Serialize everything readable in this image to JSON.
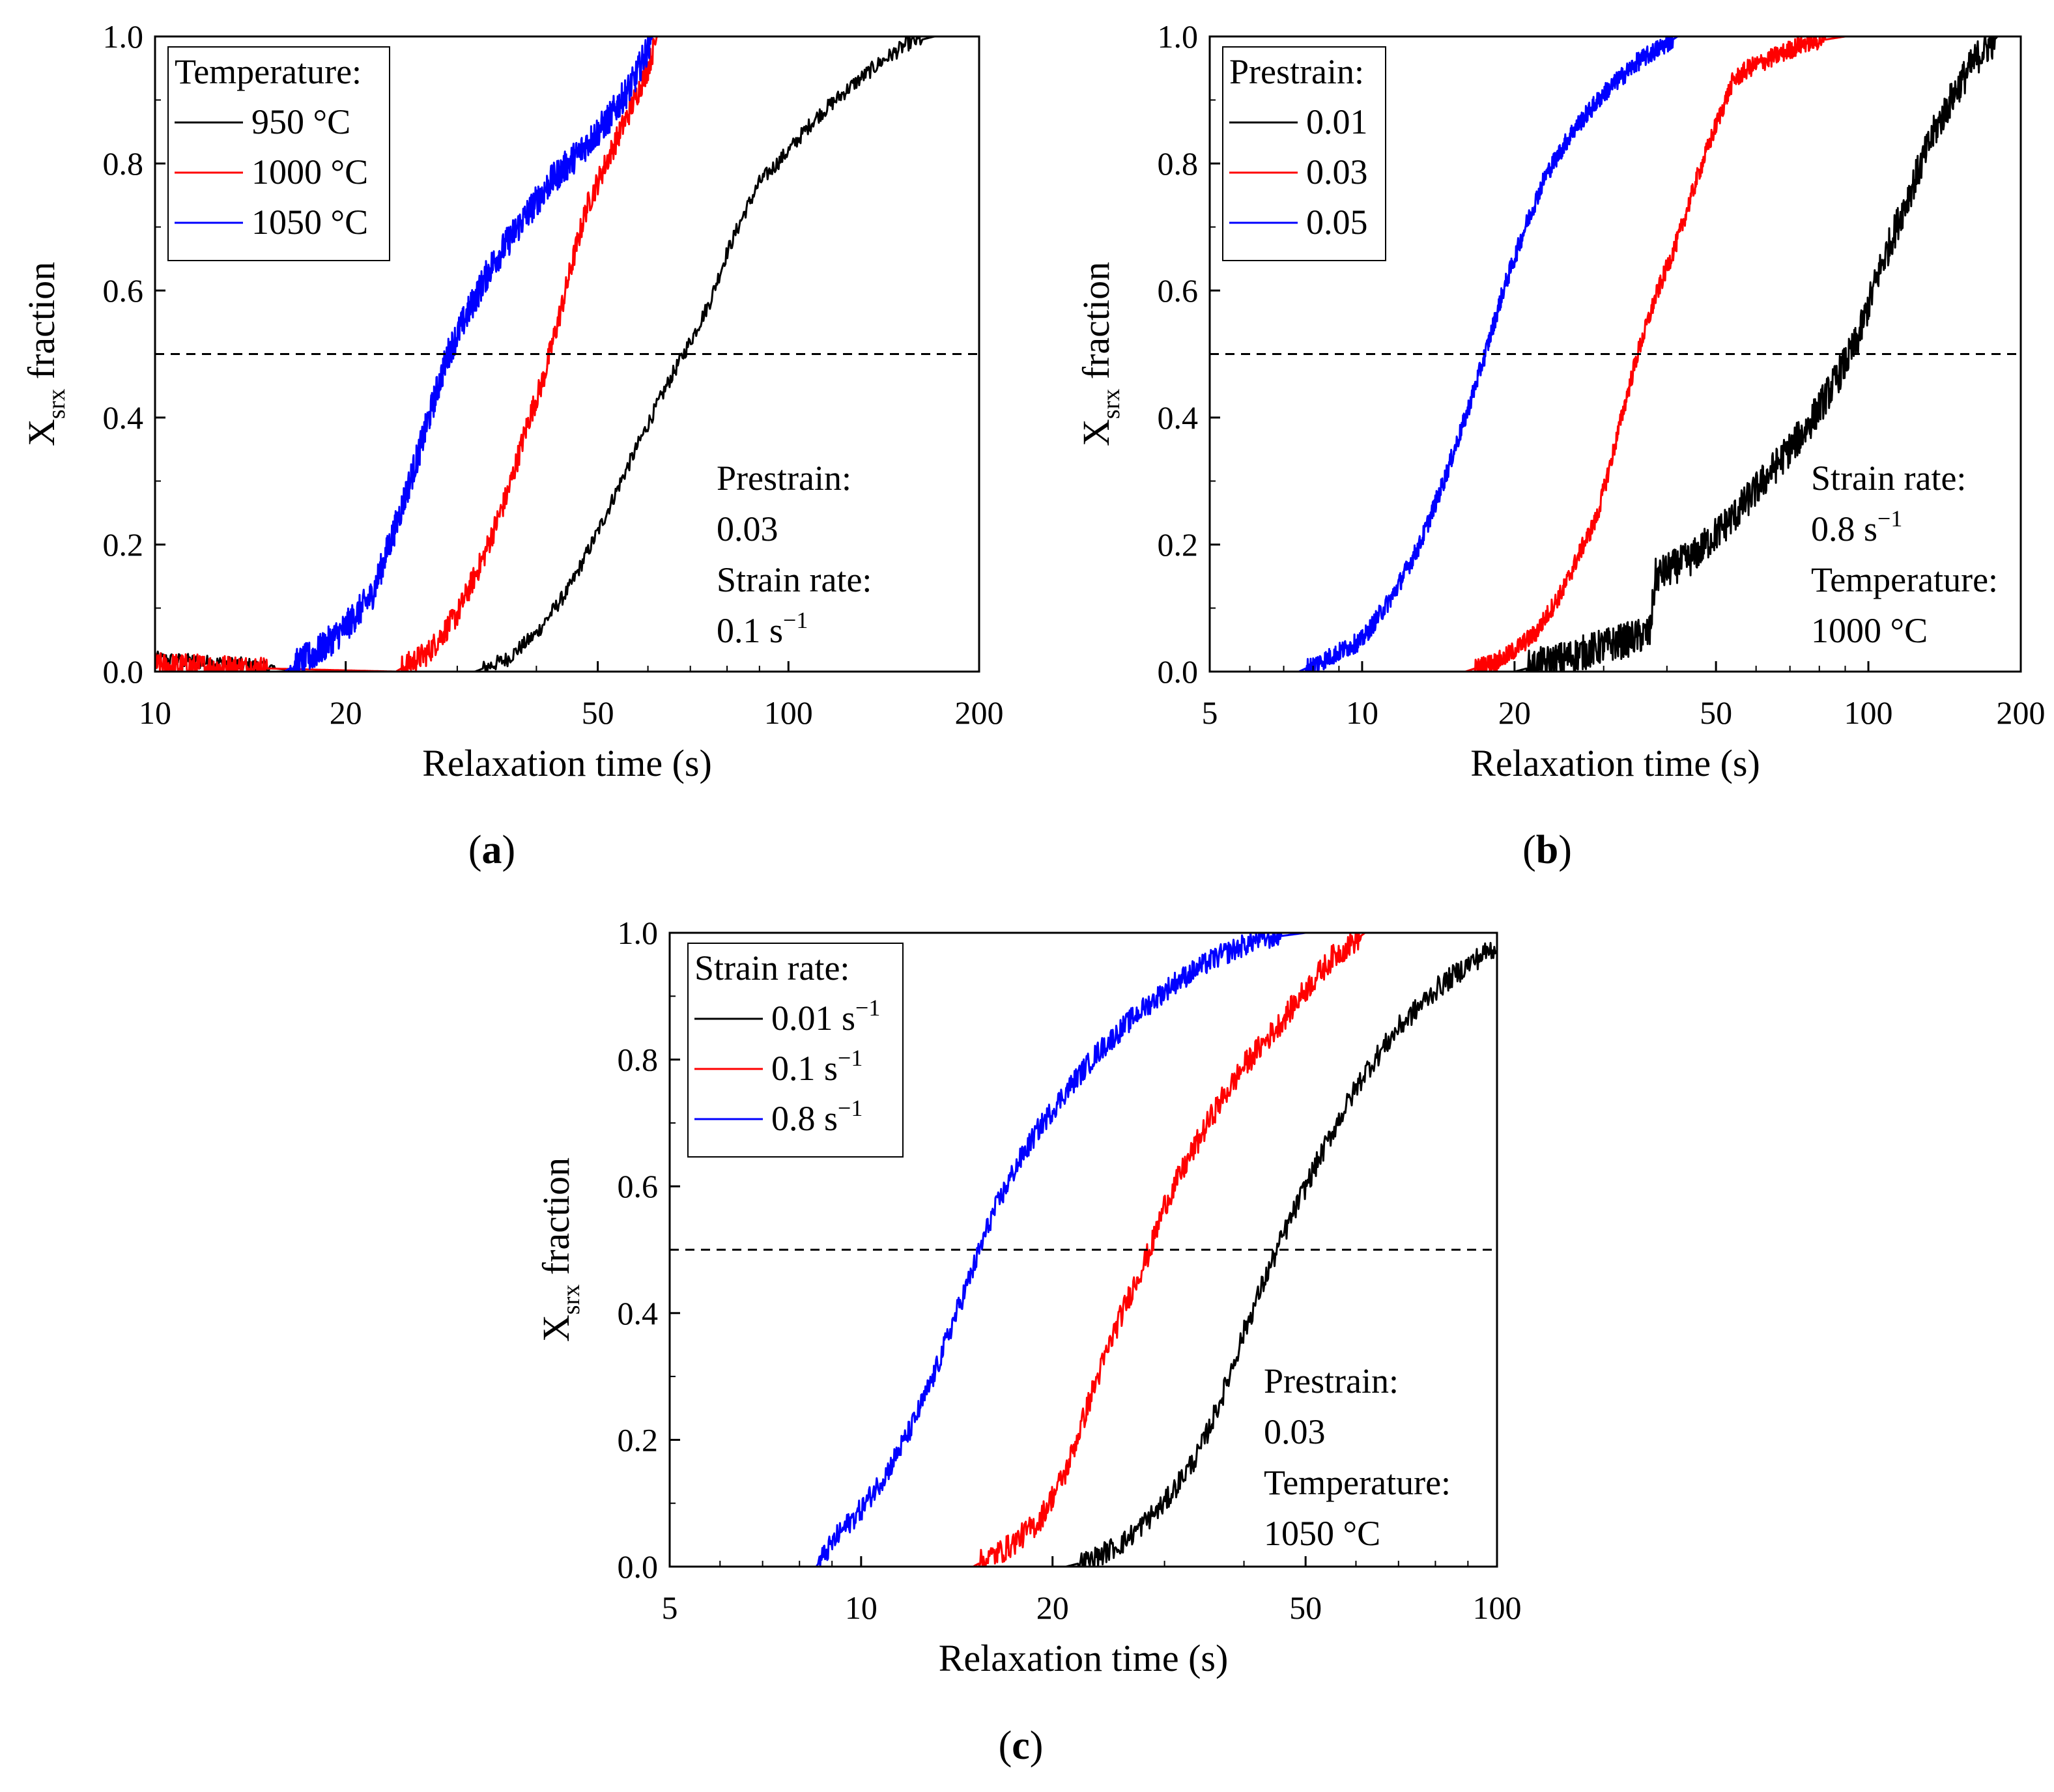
{
  "chart_data": [
    {
      "id": "a",
      "type": "line",
      "panel_label": "a",
      "xlabel": "Relaxation time (s)",
      "ylabel_main": "X",
      "ylabel_sub": "srx",
      "ylabel_rest": " fraction",
      "xscale": "log",
      "xlim": [
        10,
        200
      ],
      "ylim": [
        0.0,
        1.0
      ],
      "xticks": [
        10,
        20,
        50,
        100,
        200
      ],
      "xtick_labels": [
        "10",
        "20",
        "50",
        "100",
        "200"
      ],
      "yticks": [
        0.0,
        0.2,
        0.4,
        0.6,
        0.8,
        1.0
      ],
      "ytick_labels": [
        "0.0",
        "0.2",
        "0.4",
        "0.6",
        "0.8",
        "1.0"
      ],
      "reference_line": {
        "y": 0.5,
        "style": "dashed"
      },
      "legend": {
        "title": "Temperature:",
        "position": "top-left",
        "entries": [
          {
            "label": "950 °C",
            "color": "#000000"
          },
          {
            "label": "1000 °C",
            "color": "#ff0000"
          },
          {
            "label": "1050 °C",
            "color": "#0000ff"
          }
        ]
      },
      "annotation": {
        "lines": [
          {
            "text": "Prestrain:"
          },
          {
            "text": "0.03"
          },
          {
            "text": "Strain rate:"
          },
          {
            "text": "0.1 s",
            "sup": "−1"
          }
        ]
      },
      "series": [
        {
          "name": "950 °C",
          "color": "#000000",
          "noise": 0.012,
          "x_end": 200,
          "points": [
            [
              10,
              0.02
            ],
            [
              14,
              0.01
            ],
            [
              17,
              0.0
            ],
            [
              32,
              0.0
            ],
            [
              36,
              0.02
            ],
            [
              40,
              0.06
            ],
            [
              45,
              0.13
            ],
            [
              50,
              0.22
            ],
            [
              55,
              0.31
            ],
            [
              60,
              0.39
            ],
            [
              65,
              0.46
            ],
            [
              70,
              0.52
            ],
            [
              75,
              0.58
            ],
            [
              80,
              0.66
            ],
            [
              85,
              0.72
            ],
            [
              90,
              0.77
            ],
            [
              100,
              0.82
            ],
            [
              110,
              0.87
            ],
            [
              125,
              0.92
            ],
            [
              140,
              0.96
            ],
            [
              155,
              0.99
            ],
            [
              170,
              1.0
            ],
            [
              200,
              1.0
            ]
          ]
        },
        {
          "name": "1000 °C",
          "color": "#ff0000",
          "noise": 0.02,
          "x_end": 62,
          "points": [
            [
              10,
              0.01
            ],
            [
              15,
              0.005
            ],
            [
              24,
              0.0
            ],
            [
              27,
              0.03
            ],
            [
              30,
              0.09
            ],
            [
              33,
              0.18
            ],
            [
              36,
              0.28
            ],
            [
              39,
              0.4
            ],
            [
              41,
              0.46
            ],
            [
              42,
              0.5
            ],
            [
              44,
              0.58
            ],
            [
              46,
              0.66
            ],
            [
              48,
              0.73
            ],
            [
              52,
              0.81
            ],
            [
              56,
              0.88
            ],
            [
              60,
              0.95
            ],
            [
              62,
              1.0
            ]
          ]
        },
        {
          "name": "1050 °C",
          "color": "#0000ff",
          "noise": 0.025,
          "x_end": 61,
          "points": [
            [
              16,
              0.0
            ],
            [
              18,
              0.03
            ],
            [
              20,
              0.07
            ],
            [
              22,
              0.12
            ],
            [
              24,
              0.23
            ],
            [
              26,
              0.34
            ],
            [
              28,
              0.45
            ],
            [
              29,
              0.5
            ],
            [
              31,
              0.56
            ],
            [
              34,
              0.64
            ],
            [
              38,
              0.71
            ],
            [
              42,
              0.77
            ],
            [
              47,
              0.82
            ],
            [
              52,
              0.87
            ],
            [
              57,
              0.93
            ],
            [
              61,
              1.0
            ]
          ]
        }
      ]
    },
    {
      "id": "b",
      "type": "line",
      "panel_label": "b",
      "xlabel": "Relaxation time (s)",
      "ylabel_main": "X",
      "ylabel_sub": "srx",
      "ylabel_rest": " fraction",
      "xscale": "log",
      "xlim": [
        5,
        200
      ],
      "ylim": [
        0.0,
        1.0
      ],
      "xticks": [
        5,
        10,
        20,
        50,
        100,
        200
      ],
      "xtick_labels": [
        "5",
        "10",
        "20",
        "50",
        "100",
        "200"
      ],
      "yticks": [
        0.0,
        0.2,
        0.4,
        0.6,
        0.8,
        1.0
      ],
      "ytick_labels": [
        "0.0",
        "0.2",
        "0.4",
        "0.6",
        "0.8",
        "1.0"
      ],
      "reference_line": {
        "y": 0.5,
        "style": "dashed"
      },
      "legend": {
        "title": "Prestrain:",
        "position": "top-left",
        "entries": [
          {
            "label": "0.01",
            "color": "#000000"
          },
          {
            "label": "0.03",
            "color": "#ff0000"
          },
          {
            "label": "0.05",
            "color": "#0000ff"
          }
        ]
      },
      "annotation": {
        "lines": [
          {
            "text": "Strain rate:"
          },
          {
            "text": "0.8 s",
            "sup": "−1"
          },
          {
            "text": "Temperature:"
          },
          {
            "text": "1000 °C"
          }
        ]
      },
      "series": [
        {
          "name": "0.01",
          "color": "#000000",
          "noise": 0.028,
          "x_end": 180,
          "points": [
            [
              20,
              0.0
            ],
            [
              25,
              0.02
            ],
            [
              30,
              0.04
            ],
            [
              37,
              0.06
            ],
            [
              38,
              0.15
            ],
            [
              45,
              0.18
            ],
            [
              55,
              0.25
            ],
            [
              65,
              0.32
            ],
            [
              75,
              0.38
            ],
            [
              85,
              0.45
            ],
            [
              95,
              0.52
            ],
            [
              105,
              0.63
            ],
            [
              120,
              0.75
            ],
            [
              135,
              0.85
            ],
            [
              150,
              0.92
            ],
            [
              165,
              0.97
            ],
            [
              180,
              1.0
            ]
          ]
        },
        {
          "name": "0.03",
          "color": "#ff0000",
          "noise": 0.015,
          "x_end": 90,
          "points": [
            [
              13,
              0.0
            ],
            [
              16,
              0.0
            ],
            [
              19,
              0.02
            ],
            [
              22,
              0.06
            ],
            [
              25,
              0.13
            ],
            [
              27,
              0.19
            ],
            [
              29,
              0.24
            ],
            [
              31,
              0.33
            ],
            [
              33,
              0.42
            ],
            [
              35,
              0.5
            ],
            [
              38,
              0.59
            ],
            [
              42,
              0.68
            ],
            [
              46,
              0.78
            ],
            [
              50,
              0.86
            ],
            [
              54,
              0.93
            ],
            [
              58,
              0.95
            ],
            [
              66,
              0.97
            ],
            [
              75,
              0.99
            ],
            [
              90,
              1.0
            ]
          ]
        },
        {
          "name": "0.05",
          "color": "#0000ff",
          "noise": 0.015,
          "x_end": 42,
          "points": [
            [
              7.5,
              0.0
            ],
            [
              8.5,
              0.02
            ],
            [
              10,
              0.05
            ],
            [
              11.5,
              0.12
            ],
            [
              13,
              0.2
            ],
            [
              14.5,
              0.3
            ],
            [
              16,
              0.4
            ],
            [
              17.5,
              0.5
            ],
            [
              19,
              0.6
            ],
            [
              21,
              0.7
            ],
            [
              23,
              0.78
            ],
            [
              26,
              0.85
            ],
            [
              30,
              0.91
            ],
            [
              35,
              0.96
            ],
            [
              42,
              1.0
            ]
          ]
        }
      ]
    },
    {
      "id": "c",
      "type": "line",
      "panel_label": "c",
      "xlabel": "Relaxation time (s)",
      "ylabel_main": "X",
      "ylabel_sub": "srx",
      "ylabel_rest": " fraction",
      "xscale": "log",
      "xlim": [
        5,
        100
      ],
      "ylim": [
        0.0,
        1.0
      ],
      "xticks": [
        5,
        10,
        20,
        50,
        100
      ],
      "xtick_labels": [
        "5",
        "10",
        "20",
        "50",
        "100"
      ],
      "yticks": [
        0.0,
        0.2,
        0.4,
        0.6,
        0.8,
        1.0
      ],
      "ytick_labels": [
        "0.0",
        "0.2",
        "0.4",
        "0.6",
        "0.8",
        "1.0"
      ],
      "reference_line": {
        "y": 0.5,
        "style": "dashed"
      },
      "legend": {
        "title": "Strain rate:",
        "position": "top-left",
        "entries": [
          {
            "label": "0.01 s",
            "sup": "−1",
            "color": "#000000"
          },
          {
            "label": "0.1 s",
            "sup": "−1",
            "color": "#ff0000"
          },
          {
            "label": "0.8 s",
            "sup": "−1",
            "color": "#0000ff"
          }
        ]
      },
      "annotation": {
        "lines": [
          {
            "text": "Prestrain:"
          },
          {
            "text": "0.03"
          },
          {
            "text": "Temperature:"
          },
          {
            "text": "1050 °C"
          }
        ]
      },
      "series": [
        {
          "name": "0.01 s−1",
          "color": "#000000",
          "noise": 0.018,
          "x_end": 100,
          "points": [
            [
              5,
              0.0
            ],
            [
              21,
              0.0
            ],
            [
              23,
              0.01
            ],
            [
              26,
              0.04
            ],
            [
              30,
              0.1
            ],
            [
              34,
              0.18
            ],
            [
              37,
              0.27
            ],
            [
              40,
              0.37
            ],
            [
              43,
              0.45
            ],
            [
              46,
              0.52
            ],
            [
              50,
              0.6
            ],
            [
              56,
              0.7
            ],
            [
              62,
              0.78
            ],
            [
              70,
              0.85
            ],
            [
              80,
              0.91
            ],
            [
              90,
              0.95
            ],
            [
              100,
              0.98
            ]
          ]
        },
        {
          "name": "0.1 s−1",
          "color": "#ff0000",
          "noise": 0.02,
          "x_end": 62,
          "points": [
            [
              5,
              0.0
            ],
            [
              15,
              0.0
            ],
            [
              17,
              0.03
            ],
            [
              19,
              0.07
            ],
            [
              21,
              0.15
            ],
            [
              23,
              0.27
            ],
            [
              25,
              0.37
            ],
            [
              27,
              0.45
            ],
            [
              28.5,
              0.5
            ],
            [
              30,
              0.57
            ],
            [
              33,
              0.65
            ],
            [
              36,
              0.72
            ],
            [
              40,
              0.79
            ],
            [
              45,
              0.85
            ],
            [
              50,
              0.91
            ],
            [
              55,
              0.96
            ],
            [
              62,
              1.0
            ]
          ]
        },
        {
          "name": "0.8 s−1",
          "color": "#0000ff",
          "noise": 0.018,
          "x_end": 50,
          "points": [
            [
              5,
              0.0
            ],
            [
              8.5,
              0.0
            ],
            [
              9.2,
              0.05
            ],
            [
              10,
              0.09
            ],
            [
              11,
              0.15
            ],
            [
              12,
              0.22
            ],
            [
              13,
              0.3
            ],
            [
              14,
              0.39
            ],
            [
              15,
              0.47
            ],
            [
              16,
              0.55
            ],
            [
              17.5,
              0.63
            ],
            [
              19,
              0.69
            ],
            [
              21,
              0.75
            ],
            [
              23.5,
              0.81
            ],
            [
              27,
              0.87
            ],
            [
              31,
              0.92
            ],
            [
              36,
              0.96
            ],
            [
              42,
              0.99
            ],
            [
              50,
              1.0
            ]
          ]
        }
      ]
    }
  ]
}
